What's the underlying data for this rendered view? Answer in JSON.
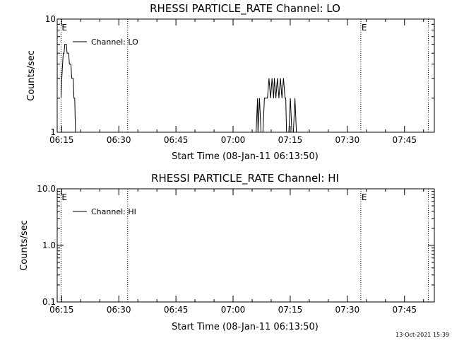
{
  "footer_timestamp": "13-Oct-2021 15:39",
  "chart_data": [
    {
      "type": "line",
      "title": "RHESSI PARTICLE_RATE Channel: LO",
      "xlabel": "Start Time (08-Jan-11 06:13:50)",
      "ylabel": "Counts/sec",
      "yscale": "log",
      "ylim": [
        1,
        10
      ],
      "ytick_values": [
        1,
        10
      ],
      "ytick_labels": [
        "1",
        "10"
      ],
      "xlim_min": [
        0,
        99
      ],
      "xtick_min": [
        1.1667,
        16.1667,
        31.1667,
        46.1667,
        61.1667,
        76.1667,
        91.1667
      ],
      "xtick_labels": [
        "06:15",
        "06:30",
        "06:45",
        "07:00",
        "07:15",
        "07:30",
        "07:45"
      ],
      "vlines_min": [
        1.0,
        18.5,
        79.7,
        97.4
      ],
      "markers": [
        {
          "label": "E",
          "x_min": 1.0
        },
        {
          "label": "E",
          "x_min": 79.7
        }
      ],
      "legend": {
        "label": "Channel: LO",
        "loc": "upper-left"
      },
      "series": [
        {
          "name": "Channel: LO",
          "x": [
            1.0,
            1.2,
            1.4,
            1.6,
            1.8,
            2.0,
            2.2,
            2.4,
            2.6,
            2.8,
            3.0,
            3.2,
            3.4,
            3.6,
            3.8,
            4.0,
            4.2,
            4.4,
            4.6,
            4.8,
            5.0,
            5.4,
            5.8,
            6.2,
            6.6,
            7.0,
            7.2,
            52.2,
            52.6,
            52.7,
            53.1,
            53.5,
            53.8,
            54.0,
            54.4,
            54.8,
            55.2,
            55.6,
            56.0,
            56.4,
            56.8,
            57.0,
            57.4,
            57.8,
            58.2,
            58.6,
            59.0,
            59.4,
            59.8,
            60.0,
            60.2,
            60.6,
            60.8,
            61.2,
            61.6,
            62.0,
            62.4,
            62.8,
            63.2,
            63.5
          ],
          "y": [
            2,
            3,
            4,
            5,
            5,
            6,
            6,
            6,
            5,
            5,
            5,
            4,
            4,
            4,
            3,
            3,
            3,
            2,
            2,
            1,
            1,
            1,
            1,
            1,
            1,
            1,
            1,
            1,
            2,
            1,
            2,
            1,
            1,
            1,
            2,
            2,
            2,
            3,
            2,
            3,
            2,
            3,
            2,
            3,
            2,
            3,
            2,
            3,
            2,
            2,
            1,
            1,
            1,
            2,
            1,
            1,
            2,
            1,
            1,
            1
          ]
        }
      ]
    },
    {
      "type": "line",
      "title": "RHESSI PARTICLE_RATE Channel: HI",
      "xlabel": "Start Time (08-Jan-11 06:13:50)",
      "ylabel": "Counts/sec",
      "yscale": "log",
      "ylim": [
        0.1,
        10
      ],
      "ytick_values": [
        0.1,
        1,
        10
      ],
      "ytick_labels": [
        "0.1",
        "1.0",
        "10.0"
      ],
      "xlim_min": [
        0,
        99
      ],
      "xtick_min": [
        1.1667,
        16.1667,
        31.1667,
        46.1667,
        61.1667,
        76.1667,
        91.1667
      ],
      "xtick_labels": [
        "06:15",
        "06:30",
        "06:45",
        "07:00",
        "07:15",
        "07:30",
        "07:45"
      ],
      "vlines_min": [
        1.0,
        18.5,
        79.7,
        97.4
      ],
      "markers": [
        {
          "label": "E",
          "x_min": 1.0
        },
        {
          "label": "E",
          "x_min": 79.7
        }
      ],
      "legend": {
        "label": "Channel: HI",
        "loc": "upper-left"
      },
      "series": [
        {
          "name": "Channel: HI",
          "x": [],
          "y": []
        }
      ]
    }
  ]
}
